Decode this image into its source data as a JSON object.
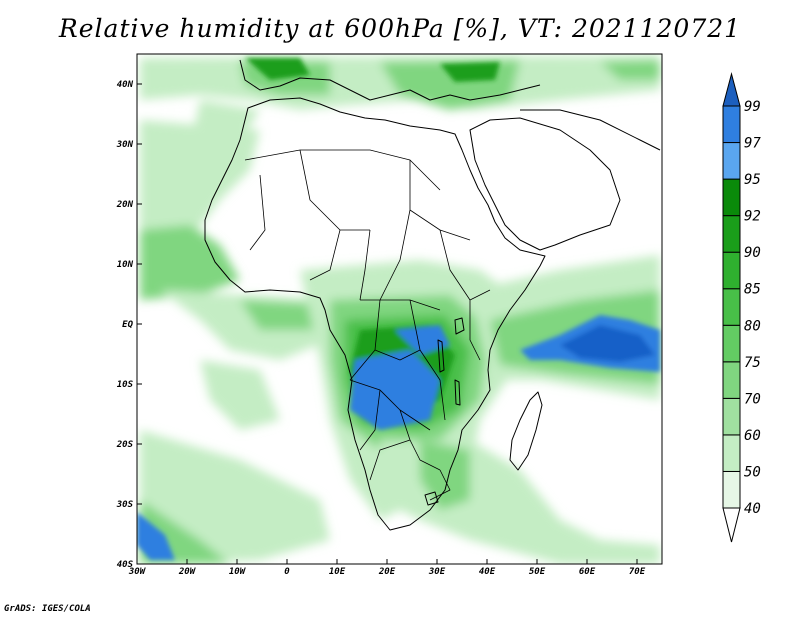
{
  "title": "Relative humidity at 600hPa [%], VT: 2021120721",
  "credit": "GrADS: IGES/COLA",
  "map": {
    "lon_range": [
      -30,
      75
    ],
    "lat_range": [
      -40,
      45
    ],
    "lon_ticks": [
      {
        "value": -30,
        "label": "30W"
      },
      {
        "value": -20,
        "label": "20W"
      },
      {
        "value": -10,
        "label": "10W"
      },
      {
        "value": 0,
        "label": "0"
      },
      {
        "value": 10,
        "label": "10E"
      },
      {
        "value": 20,
        "label": "20E"
      },
      {
        "value": 30,
        "label": "30E"
      },
      {
        "value": 40,
        "label": "40E"
      },
      {
        "value": 50,
        "label": "50E"
      },
      {
        "value": 60,
        "label": "60E"
      },
      {
        "value": 70,
        "label": "70E"
      }
    ],
    "lat_ticks": [
      {
        "value": 40,
        "label": "40N"
      },
      {
        "value": 30,
        "label": "30N"
      },
      {
        "value": 20,
        "label": "20N"
      },
      {
        "value": 10,
        "label": "10N"
      },
      {
        "value": 0,
        "label": "EQ"
      },
      {
        "value": -10,
        "label": "10S"
      },
      {
        "value": -20,
        "label": "20S"
      },
      {
        "value": -30,
        "label": "30S"
      },
      {
        "value": -40,
        "label": "40S"
      }
    ]
  },
  "colorbar": {
    "levels": [
      "40",
      "50",
      "60",
      "70",
      "75",
      "80",
      "85",
      "90",
      "92",
      "95",
      "97",
      "99"
    ],
    "colors": [
      "#e6f7e6",
      "#c4edc4",
      "#a0e0a0",
      "#80d680",
      "#63cc63",
      "#48bf48",
      "#2fb02f",
      "#1a9e1a",
      "#0a8a0a",
      "#5aa6ef",
      "#2f7fe0",
      "#1460c8"
    ],
    "top_color": "#1c5fbe",
    "bottom_color": "#ffffff"
  },
  "humidity_colors": {
    "light": "#c4edc4",
    "mid": "#80d680",
    "strong": "#48bf48",
    "deep": "#1a9e1a",
    "blue": "#2f7fe0",
    "blue_dark": "#1460c8"
  }
}
